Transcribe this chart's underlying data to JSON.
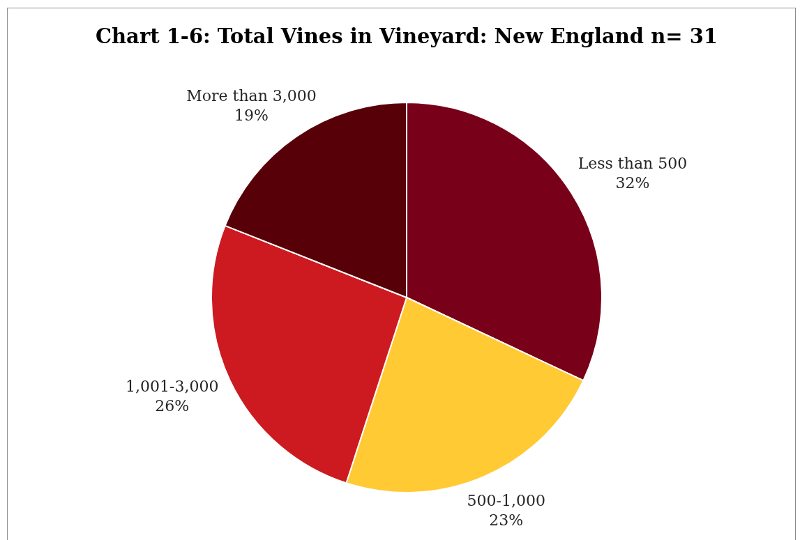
{
  "chart_data": {
    "type": "pie",
    "title": "Chart 1-6: Total Vines in Vineyard: New England n= 31",
    "categories": [
      "Less than 500",
      "500-1,000",
      "1,001-3,000",
      "More than 3,000"
    ],
    "values": [
      32,
      23,
      26,
      19
    ],
    "value_labels": [
      "32%",
      "23%",
      "26%",
      "19%"
    ],
    "colors": [
      "#780019",
      "#ffca33",
      "#cc1a20",
      "#580008"
    ]
  }
}
